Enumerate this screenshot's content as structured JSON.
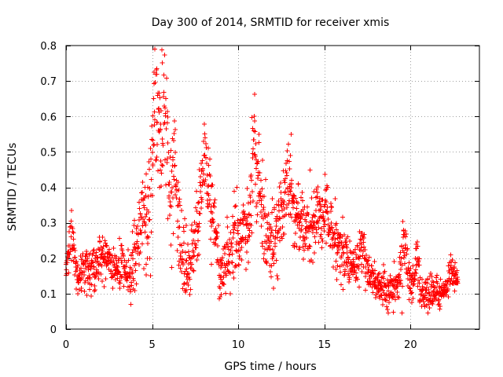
{
  "chart_data": {
    "type": "scatter",
    "title": "Day 300 of 2014, SRMTID for receiver xmis",
    "xlabel": "GPS time / hours",
    "ylabel": "SRMTID / TECUs",
    "xlim": [
      0,
      24
    ],
    "ylim": [
      0,
      0.8
    ],
    "x_ticks": [
      0,
      5,
      10,
      15,
      20
    ],
    "y_ticks": [
      0,
      0.1,
      0.2,
      0.3,
      0.4,
      0.5,
      0.6,
      0.7,
      0.8
    ],
    "x_tick_labels": [
      "0",
      "5",
      "10",
      "15",
      "20"
    ],
    "y_tick_labels": [
      "0",
      "0.1",
      "0.2",
      "0.3",
      "0.4",
      "0.5",
      "0.6",
      "0.7",
      "0.8"
    ],
    "grid": true,
    "marker": "+",
    "series": [
      {
        "name": "SRMTID",
        "color": "#ff0000",
        "envelope": {
          "x": [
            0,
            0.2,
            0.4,
            0.7,
            1.0,
            1.5,
            2.0,
            2.5,
            3.0,
            3.5,
            3.8,
            4.0,
            4.3,
            4.6,
            4.9,
            5.1,
            5.3,
            5.5,
            5.7,
            5.9,
            6.1,
            6.3,
            6.5,
            6.8,
            7.0,
            7.3,
            7.6,
            7.9,
            8.1,
            8.4,
            8.7,
            9.0,
            9.3,
            9.6,
            10.0,
            10.4,
            10.8,
            11.0,
            11.4,
            11.8,
            12.2,
            12.6,
            13.0,
            13.4,
            13.8,
            14.2,
            14.6,
            15.0,
            15.4,
            15.8,
            16.2,
            16.6,
            17.0,
            17.4,
            17.8,
            18.2,
            18.6,
            19.0,
            19.4,
            19.8,
            20.2,
            20.6,
            21.0,
            21.4,
            21.8,
            22.2,
            22.6
          ],
          "y": [
            0.18,
            0.2,
            0.2,
            0.14,
            0.17,
            0.16,
            0.2,
            0.19,
            0.17,
            0.16,
            0.14,
            0.22,
            0.3,
            0.35,
            0.38,
            0.5,
            0.52,
            0.48,
            0.55,
            0.45,
            0.36,
            0.42,
            0.32,
            0.2,
            0.16,
            0.2,
            0.26,
            0.3,
            0.44,
            0.36,
            0.24,
            0.16,
            0.18,
            0.2,
            0.26,
            0.28,
            0.3,
            0.36,
            0.3,
            0.26,
            0.28,
            0.34,
            0.36,
            0.32,
            0.3,
            0.28,
            0.26,
            0.3,
            0.26,
            0.24,
            0.2,
            0.18,
            0.2,
            0.18,
            0.14,
            0.12,
            0.11,
            0.12,
            0.13,
            0.15,
            0.12,
            0.1,
            0.1,
            0.1,
            0.11,
            0.13,
            0.14
          ]
        },
        "spread": {
          "x": [
            0,
            1,
            2,
            3,
            4,
            5,
            6,
            7,
            8,
            9,
            10,
            11,
            12,
            13,
            14,
            15,
            16,
            17,
            18,
            19,
            20,
            21,
            22,
            22.7
          ],
          "y": [
            0.05,
            0.06,
            0.06,
            0.06,
            0.1,
            0.16,
            0.16,
            0.1,
            0.1,
            0.08,
            0.1,
            0.11,
            0.1,
            0.1,
            0.09,
            0.08,
            0.07,
            0.06,
            0.05,
            0.05,
            0.05,
            0.04,
            0.04,
            0.04
          ]
        },
        "peaks": [
          {
            "x": 0.3,
            "y": 0.28
          },
          {
            "x": 5.2,
            "y": 0.72
          },
          {
            "x": 5.45,
            "y": 0.65
          },
          {
            "x": 5.7,
            "y": 0.79
          },
          {
            "x": 6.2,
            "y": 0.5
          },
          {
            "x": 7.9,
            "y": 0.55
          },
          {
            "x": 8.1,
            "y": 0.52
          },
          {
            "x": 9.8,
            "y": 0.33
          },
          {
            "x": 10.9,
            "y": 0.58
          },
          {
            "x": 11.2,
            "y": 0.47
          },
          {
            "x": 12.9,
            "y": 0.44
          },
          {
            "x": 14.6,
            "y": 0.37
          },
          {
            "x": 15.1,
            "y": 0.4
          },
          {
            "x": 17.2,
            "y": 0.28
          },
          {
            "x": 19.6,
            "y": 0.29
          },
          {
            "x": 20.4,
            "y": 0.25
          },
          {
            "x": 22.4,
            "y": 0.2
          }
        ],
        "x_start": 0,
        "x_end": 22.75,
        "sample_step_hours": 0.025
      }
    ]
  }
}
